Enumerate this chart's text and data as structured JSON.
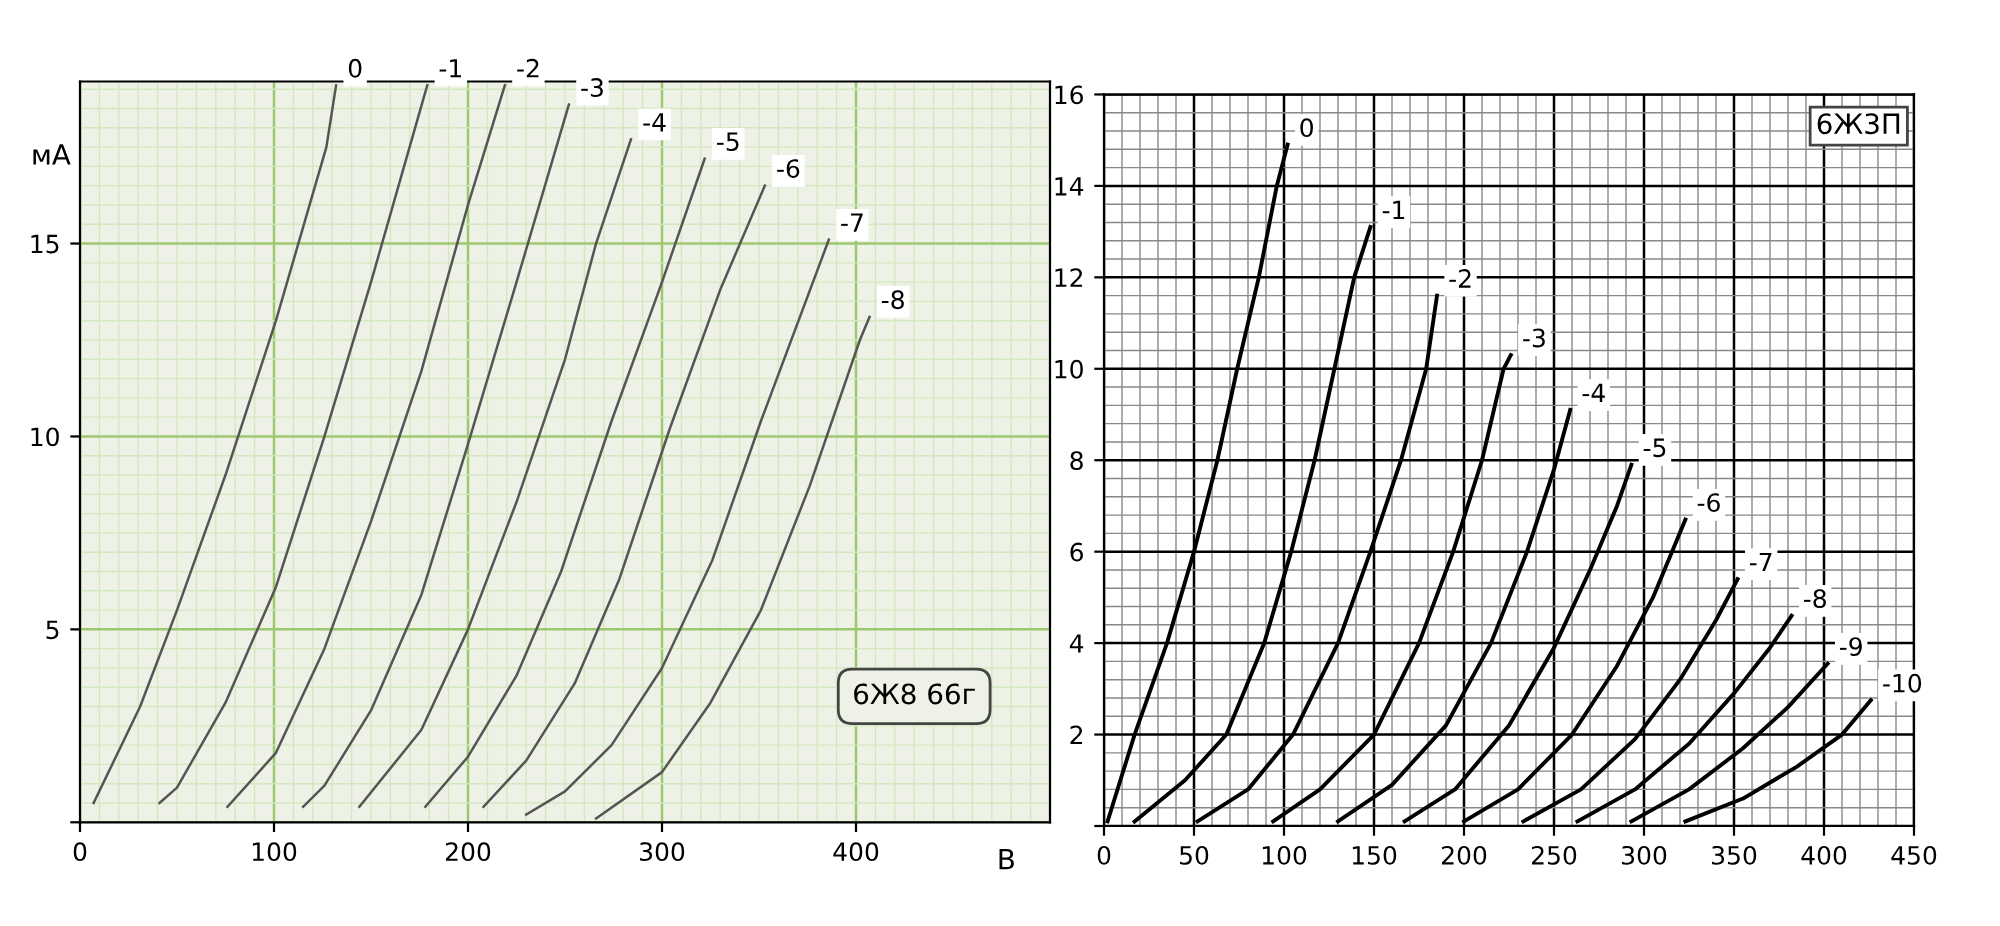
{
  "chart_data": [
    {
      "type": "line",
      "xlabel": "B",
      "ylabel": "мА",
      "xlim": [
        0,
        500
      ],
      "ylim": [
        0,
        19.2
      ],
      "xticks": [
        0,
        100,
        200,
        300,
        400
      ],
      "yticks": [
        {
          "value": 0,
          "label": null
        },
        5,
        10,
        15
      ],
      "grid": true,
      "legend": false,
      "marker": "none",
      "line_style": "solid",
      "annotations": [
        "6Ж8 66г"
      ],
      "series": [
        {
          "name": "0",
          "color": "#555555",
          "x": [
            7,
            31,
            50,
            75,
            101,
            127,
            132
          ],
          "values": [
            0.5,
            3,
            5.5,
            9,
            13,
            17.5,
            19.1
          ]
        },
        {
          "name": "-1",
          "color": "#555555",
          "x": [
            41,
            50,
            75,
            101,
            126,
            150,
            179
          ],
          "values": [
            0.5,
            0.9,
            3.1,
            6.1,
            10,
            14,
            19.1
          ]
        },
        {
          "name": "-2",
          "color": "#555555",
          "x": [
            76,
            101,
            126,
            150,
            176,
            200,
            219
          ],
          "values": [
            0.4,
            1.8,
            4.5,
            7.8,
            11.7,
            16,
            19.1
          ]
        },
        {
          "name": "-3",
          "color": "#555555",
          "x": [
            115,
            126,
            150,
            176,
            200,
            225,
            252
          ],
          "values": [
            0.4,
            0.95,
            2.9,
            5.9,
            9.8,
            14,
            18.6
          ]
        },
        {
          "name": "-4",
          "color": "#555555",
          "x": [
            144,
            176,
            200,
            225,
            250,
            266,
            284
          ],
          "values": [
            0.4,
            2.4,
            5,
            8.3,
            12,
            15,
            17.7
          ]
        },
        {
          "name": "-5",
          "color": "#555555",
          "x": [
            178,
            200,
            225,
            248,
            274,
            300,
            322
          ],
          "values": [
            0.4,
            1.7,
            3.8,
            6.5,
            10.4,
            14,
            17.2
          ]
        },
        {
          "name": "-6",
          "color": "#555555",
          "x": [
            208,
            230,
            255,
            278,
            304,
            330,
            353
          ],
          "values": [
            0.4,
            1.6,
            3.6,
            6.3,
            10.2,
            13.8,
            16.5
          ]
        },
        {
          "name": "-7",
          "color": "#555555",
          "x": [
            230,
            250,
            274,
            300,
            326,
            351,
            386
          ],
          "values": [
            0.2,
            0.8,
            2,
            4,
            6.8,
            10.4,
            15.1
          ]
        },
        {
          "name": "-8",
          "color": "#555555",
          "x": [
            266,
            300,
            325,
            351,
            376,
            402,
            407
          ],
          "values": [
            0.1,
            1.3,
            3.1,
            5.5,
            8.7,
            12.5,
            13.1
          ]
        }
      ]
    },
    {
      "type": "line",
      "xlim": [
        0,
        450
      ],
      "ylim": [
        0,
        16
      ],
      "xticks": [
        0,
        50,
        100,
        150,
        200,
        250,
        300,
        350,
        400,
        450
      ],
      "yticks": [
        {
          "value": 0,
          "label": null
        },
        2,
        4,
        6,
        8,
        10,
        12,
        14,
        16
      ],
      "grid": true,
      "legend": false,
      "marker": "none",
      "line_style": "solid",
      "annotations": [
        "6Ж3П"
      ],
      "series": [
        {
          "name": "0",
          "color": "#000000",
          "x": [
            2,
            17,
            35,
            50,
            63,
            74,
            86,
            96,
            102
          ],
          "values": [
            0.1,
            2,
            4,
            6,
            8,
            10,
            12,
            14,
            14.9
          ]
        },
        {
          "name": "-1",
          "color": "#000000",
          "x": [
            17,
            45,
            68,
            89,
            104,
            117,
            128,
            139,
            148
          ],
          "values": [
            0.1,
            1,
            2,
            4,
            6,
            8,
            10,
            12,
            13.1
          ]
        },
        {
          "name": "-2",
          "color": "#000000",
          "x": [
            52,
            80,
            105,
            130,
            148,
            165,
            179,
            185
          ],
          "values": [
            0.1,
            0.8,
            2,
            4,
            6,
            8,
            10,
            11.6
          ]
        },
        {
          "name": "-3",
          "color": "#000000",
          "x": [
            94,
            120,
            150,
            175,
            194,
            210,
            222,
            226
          ],
          "values": [
            0.1,
            0.8,
            2,
            4,
            6,
            8,
            10,
            10.3
          ]
        },
        {
          "name": "-4",
          "color": "#000000",
          "x": [
            130,
            160,
            190,
            215,
            235,
            250,
            259
          ],
          "values": [
            0.1,
            0.9,
            2.2,
            4,
            6,
            7.8,
            9.1
          ]
        },
        {
          "name": "-5",
          "color": "#000000",
          "x": [
            167,
            195,
            225,
            250,
            270,
            285,
            293
          ],
          "values": [
            0.1,
            0.8,
            2.2,
            3.9,
            5.6,
            7,
            7.9
          ]
        },
        {
          "name": "-6",
          "color": "#000000",
          "x": [
            200,
            230,
            260,
            285,
            305,
            323
          ],
          "values": [
            0.1,
            0.8,
            2,
            3.5,
            5,
            6.7
          ]
        },
        {
          "name": "-7",
          "color": "#000000",
          "x": [
            233,
            265,
            295,
            320,
            340,
            352
          ],
          "values": [
            0.1,
            0.8,
            1.9,
            3.2,
            4.5,
            5.4
          ]
        },
        {
          "name": "-8",
          "color": "#000000",
          "x": [
            263,
            295,
            325,
            350,
            370,
            382
          ],
          "values": [
            0.1,
            0.8,
            1.8,
            2.9,
            3.9,
            4.6
          ]
        },
        {
          "name": "-9",
          "color": "#000000",
          "x": [
            293,
            325,
            355,
            380,
            402
          ],
          "values": [
            0.1,
            0.8,
            1.7,
            2.6,
            3.55
          ]
        },
        {
          "name": "-10",
          "color": "#000000",
          "x": [
            323,
            355,
            385,
            410,
            426
          ],
          "values": [
            0.1,
            0.6,
            1.3,
            2,
            2.75
          ]
        }
      ]
    }
  ]
}
